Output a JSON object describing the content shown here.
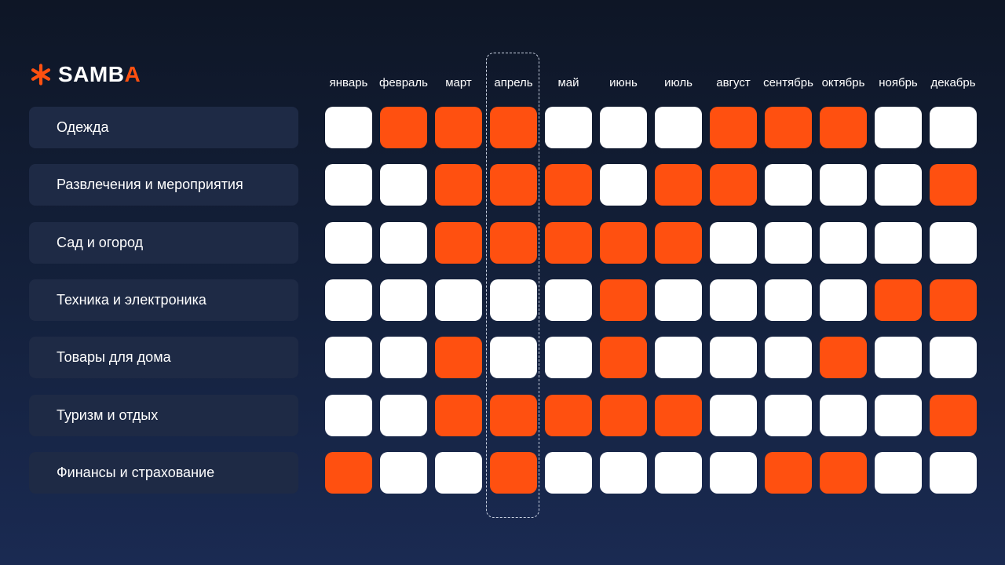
{
  "brand": {
    "name_main": "SAMB",
    "name_accent": "A",
    "accent_color": "#ff5010",
    "logo_icon": "asterisk-icon"
  },
  "colors": {
    "active": "#ff5010",
    "inactive": "#ffffff",
    "background": "#14213d",
    "label_bg": "#1e2a45"
  },
  "chart_data": {
    "type": "heatmap",
    "title": "",
    "x_labels": [
      "январь",
      "февраль",
      "март",
      "апрель",
      "май",
      "июнь",
      "июль",
      "август",
      "сентябрь",
      "октябрь",
      "ноябрь",
      "декабрь"
    ],
    "y_labels": [
      "Одежда",
      "Развлечения и мероприятия",
      "Сад и огород",
      "Техника и электроника",
      "Товары для дома",
      "Туризм и отдых",
      "Финансы и страхование"
    ],
    "values": [
      [
        0,
        1,
        1,
        1,
        0,
        0,
        0,
        1,
        1,
        1,
        0,
        0
      ],
      [
        0,
        0,
        1,
        1,
        1,
        0,
        1,
        1,
        0,
        0,
        0,
        1
      ],
      [
        0,
        0,
        1,
        1,
        1,
        1,
        1,
        0,
        0,
        0,
        0,
        0
      ],
      [
        0,
        0,
        0,
        0,
        0,
        1,
        0,
        0,
        0,
        0,
        1,
        1
      ],
      [
        0,
        0,
        1,
        0,
        0,
        1,
        0,
        0,
        0,
        1,
        0,
        0
      ],
      [
        0,
        0,
        1,
        1,
        1,
        1,
        1,
        0,
        0,
        0,
        0,
        1
      ],
      [
        1,
        0,
        0,
        1,
        0,
        0,
        0,
        0,
        1,
        1,
        0,
        0
      ]
    ],
    "highlighted_column": "апрель",
    "legend": "none",
    "grid": false
  }
}
